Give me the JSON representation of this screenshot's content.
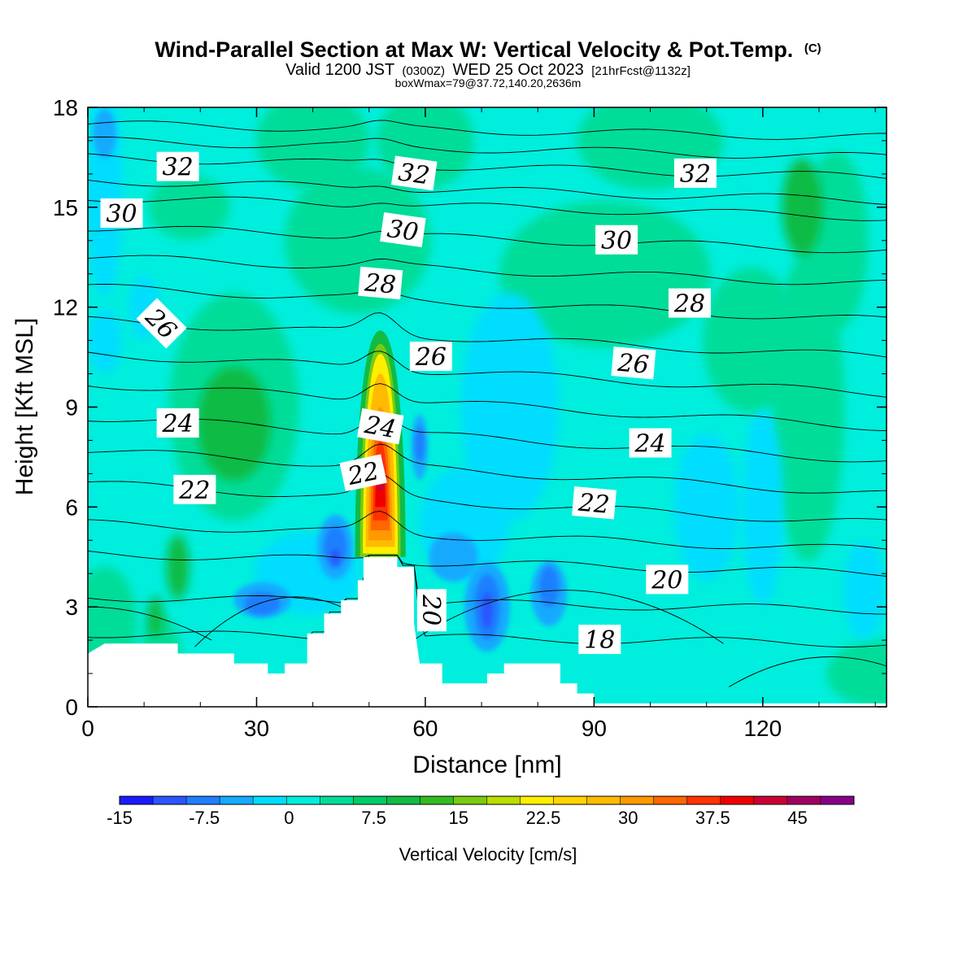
{
  "title": {
    "main": "Wind-Parallel Section at Max W: Vertical Velocity & Pot.Temp.",
    "main_suffix": "(C)",
    "valid_prefix": "Valid 1200 JST",
    "valid_utc": "(0300Z)",
    "valid_date": "WED 25 Oct 2023",
    "valid_fcst": "[21hrFcst@1132z]",
    "box": "boxWmax=79@37.72,140.20,2636m"
  },
  "colors": {
    "levels": [
      "#1a1aff",
      "#2a55ff",
      "#1f7fff",
      "#14aaff",
      "#00ddff",
      "#00eedd",
      "#00dd99",
      "#00cc66",
      "#11bb44",
      "#33bb22",
      "#77cc11",
      "#bbdd00",
      "#ffee00",
      "#ffd400",
      "#ffbb00",
      "#ff9900",
      "#ff6600",
      "#ff3300",
      "#ee0000",
      "#cc0033",
      "#a00060",
      "#880088"
    ],
    "background_field": "#00eedd",
    "terrain": "#ffffff"
  },
  "chart_data": {
    "type": "heatmap",
    "xlabel": "Distance [nm]",
    "ylabel": "Height [Kft MSL]",
    "xlim": [
      0,
      142
    ],
    "ylim": [
      0,
      18
    ],
    "xticks": [
      0,
      30,
      60,
      90,
      120
    ],
    "yticks": [
      0,
      3,
      6,
      9,
      12,
      15,
      18
    ],
    "colorbar": {
      "label": "Vertical Velocity [cm/s]",
      "ticks": [
        -15,
        -7.5,
        0,
        7.5,
        15,
        22.5,
        30,
        37.5,
        45
      ],
      "tick_labels": [
        "-15",
        "-7.5",
        "0",
        "7.5",
        "15",
        "22.5",
        "30",
        "37.5",
        "45"
      ],
      "range": [
        -15,
        50
      ],
      "step": 2.5
    },
    "terrain_profile": [
      [
        0,
        1.6
      ],
      [
        3,
        1.9
      ],
      [
        16,
        1.9
      ],
      [
        16,
        1.6
      ],
      [
        26,
        1.6
      ],
      [
        26,
        1.3
      ],
      [
        32,
        1.3
      ],
      [
        32,
        1.0
      ],
      [
        35,
        1.0
      ],
      [
        35,
        1.3
      ],
      [
        39,
        1.3
      ],
      [
        39,
        2.2
      ],
      [
        42,
        2.2
      ],
      [
        42,
        2.8
      ],
      [
        45,
        2.8
      ],
      [
        45,
        3.2
      ],
      [
        48,
        3.2
      ],
      [
        48,
        3.8
      ],
      [
        49,
        3.8
      ],
      [
        49,
        4.5
      ],
      [
        55,
        4.5
      ],
      [
        55,
        4.2
      ],
      [
        58,
        4.2
      ],
      [
        58,
        2.5
      ],
      [
        59,
        1.3
      ],
      [
        63,
        1.3
      ],
      [
        63,
        0.7
      ],
      [
        71,
        0.7
      ],
      [
        71,
        1.0
      ],
      [
        74,
        1.0
      ],
      [
        74,
        1.3
      ],
      [
        84,
        1.3
      ],
      [
        84,
        0.7
      ],
      [
        87,
        0.7
      ],
      [
        87,
        0.4
      ],
      [
        90,
        0.4
      ],
      [
        90,
        0.1
      ],
      [
        142,
        0.1
      ]
    ],
    "theta_contours": [
      {
        "value": 18,
        "label": "18"
      },
      {
        "value": 20,
        "label": "20"
      },
      {
        "value": 22,
        "label": "22"
      },
      {
        "value": 24,
        "label": "24"
      },
      {
        "value": 26,
        "label": "26"
      },
      {
        "value": 28,
        "label": "28"
      },
      {
        "value": 30,
        "label": "30"
      },
      {
        "value": 32,
        "label": "32"
      }
    ],
    "contour_labels": [
      {
        "text": "32",
        "x": 16,
        "y": 16.2,
        "rot": 0
      },
      {
        "text": "32",
        "x": 58,
        "y": 16.0,
        "rot": 8
      },
      {
        "text": "32",
        "x": 108,
        "y": 16.0,
        "rot": 0
      },
      {
        "text": "30",
        "x": 6,
        "y": 14.8,
        "rot": 0
      },
      {
        "text": "30",
        "x": 56,
        "y": 14.3,
        "rot": 8
      },
      {
        "text": "30",
        "x": 94,
        "y": 14.0,
        "rot": 0
      },
      {
        "text": "28",
        "x": 52,
        "y": 12.7,
        "rot": 5
      },
      {
        "text": "28",
        "x": 107,
        "y": 12.1,
        "rot": 0
      },
      {
        "text": "26",
        "x": 13,
        "y": 11.5,
        "rot": 45
      },
      {
        "text": "26",
        "x": 61,
        "y": 10.5,
        "rot": 0
      },
      {
        "text": "26",
        "x": 97,
        "y": 10.3,
        "rot": 5
      },
      {
        "text": "24",
        "x": 16,
        "y": 8.5,
        "rot": 0
      },
      {
        "text": "24",
        "x": 52,
        "y": 8.4,
        "rot": 10
      },
      {
        "text": "24",
        "x": 100,
        "y": 7.9,
        "rot": 0
      },
      {
        "text": "22",
        "x": 19,
        "y": 6.5,
        "rot": 0
      },
      {
        "text": "22",
        "x": 49,
        "y": 7.0,
        "rot": -12
      },
      {
        "text": "22",
        "x": 90,
        "y": 6.1,
        "rot": 5
      },
      {
        "text": "20",
        "x": 103,
        "y": 3.8,
        "rot": 0
      },
      {
        "text": "20",
        "x": 61,
        "y": 2.9,
        "rot": 90
      },
      {
        "text": "18",
        "x": 91,
        "y": 2.0,
        "rot": 0
      }
    ],
    "updraft": {
      "x": 52,
      "y_base": 4.5,
      "y_top": 11.0,
      "peak_cm_s": 79
    },
    "downdrafts": [
      {
        "x": 71,
        "y": 3.0,
        "w": -15
      },
      {
        "x": 82,
        "y": 3.5,
        "w": -10
      },
      {
        "x": 44,
        "y": 4.7,
        "w": -10
      },
      {
        "x": 31,
        "y": 3.0,
        "w": -7
      },
      {
        "x": 59,
        "y": 7.8,
        "w": -7
      }
    ]
  }
}
